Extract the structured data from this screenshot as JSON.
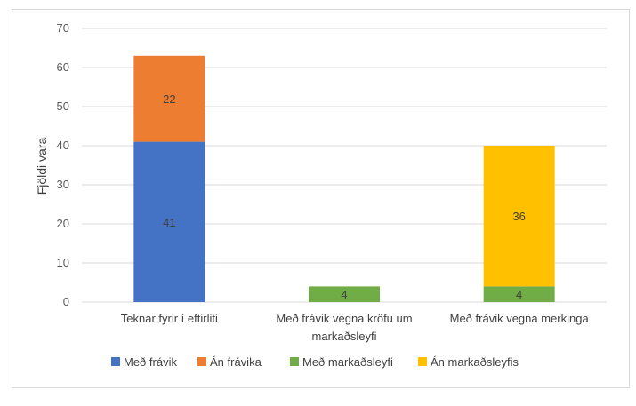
{
  "chart_data": {
    "type": "bar",
    "stacked": true,
    "title": "",
    "xlabel": "",
    "ylabel": "Fjöldi vara",
    "ylim": [
      0,
      70
    ],
    "yticks": [
      0,
      10,
      20,
      30,
      40,
      50,
      60,
      70
    ],
    "grid": true,
    "legend_position": "bottom",
    "categories": [
      [
        "Teknar fyrir í eftirliti"
      ],
      [
        "Með frávik vegna kröfu um",
        "markaðsleyfi"
      ],
      [
        "Með frávik vegna merkinga"
      ]
    ],
    "series": [
      {
        "name": "Með frávik",
        "color": "#4472C4",
        "values": [
          41,
          0,
          0
        ]
      },
      {
        "name": "Án frávika",
        "color": "#ED7D31",
        "values": [
          22,
          0,
          0
        ]
      },
      {
        "name": "Með markaðsleyfi",
        "color": "#70AD47",
        "values": [
          0,
          4,
          4
        ]
      },
      {
        "name": "Án markaðsleyfis",
        "color": "#FFC000",
        "values": [
          0,
          0,
          36
        ]
      }
    ]
  }
}
